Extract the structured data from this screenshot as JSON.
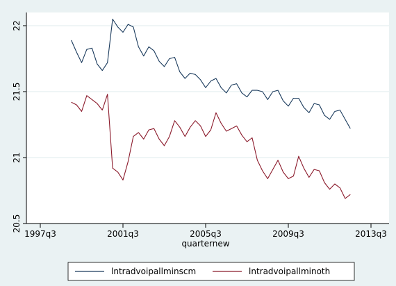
{
  "chart_data": {
    "type": "line",
    "title": "",
    "xlabel": "quarternew",
    "ylabel": "",
    "x_ticks": [
      "1997q3",
      "2001q3",
      "2005q3",
      "2009q3",
      "2013q3"
    ],
    "x_tick_positions": [
      1997.5,
      2001.5,
      2005.5,
      2009.5,
      2013.5
    ],
    "y_ticks": [
      "20.5",
      "21",
      "21.5",
      "22"
    ],
    "y_tick_values": [
      20.5,
      21,
      21.5,
      22
    ],
    "xlim": [
      1997.5,
      2013.5
    ],
    "ylim": [
      20.5,
      22.1
    ],
    "grid": true,
    "legend_position": "bottom",
    "colors": {
      "background": "#eaf2f3",
      "plot": "#ffffff",
      "grid": "#eaf2f3",
      "series1": "#1a3a5c",
      "series2": "#8b1a2b"
    },
    "series": [
      {
        "name": "lntradvoipallminscm",
        "color": "#1a3a5c",
        "x": [
          1999.0,
          1999.25,
          1999.5,
          1999.75,
          2000.0,
          2000.25,
          2000.5,
          2000.75,
          2001.0,
          2001.25,
          2001.5,
          2001.75,
          2002.0,
          2002.25,
          2002.5,
          2002.75,
          2003.0,
          2003.25,
          2003.5,
          2003.75,
          2004.0,
          2004.25,
          2004.5,
          2004.75,
          2005.0,
          2005.25,
          2005.5,
          2005.75,
          2006.0,
          2006.25,
          2006.5,
          2006.75,
          2007.0,
          2007.25,
          2007.5,
          2007.75,
          2008.0,
          2008.25,
          2008.5,
          2008.75,
          2009.0,
          2009.25,
          2009.5,
          2009.75,
          2010.0,
          2010.25,
          2010.5,
          2010.75,
          2011.0,
          2011.25,
          2011.5,
          2011.75,
          2012.0,
          2012.25,
          2012.5
        ],
        "values": [
          21.89,
          21.8,
          21.72,
          21.82,
          21.83,
          21.71,
          21.66,
          21.72,
          22.05,
          21.99,
          21.95,
          22.01,
          21.99,
          21.84,
          21.77,
          21.84,
          21.81,
          21.73,
          21.69,
          21.75,
          21.76,
          21.65,
          21.6,
          21.64,
          21.63,
          21.59,
          21.53,
          21.58,
          21.6,
          21.53,
          21.49,
          21.55,
          21.56,
          21.49,
          21.46,
          21.51,
          21.51,
          21.5,
          21.44,
          21.5,
          21.51,
          21.43,
          21.39,
          21.45,
          21.45,
          21.38,
          21.34,
          21.41,
          21.4,
          21.32,
          21.29,
          21.35,
          21.36,
          21.29,
          21.22
        ]
      },
      {
        "name": "lntradvoipallminoth",
        "color": "#8b1a2b",
        "x": [
          1999.0,
          1999.25,
          1999.5,
          1999.75,
          2000.0,
          2000.25,
          2000.5,
          2000.75,
          2001.0,
          2001.25,
          2001.5,
          2001.75,
          2002.0,
          2002.25,
          2002.5,
          2002.75,
          2003.0,
          2003.25,
          2003.5,
          2003.75,
          2004.0,
          2004.25,
          2004.5,
          2004.75,
          2005.0,
          2005.25,
          2005.5,
          2005.75,
          2006.0,
          2006.25,
          2006.5,
          2006.75,
          2007.0,
          2007.25,
          2007.5,
          2007.75,
          2008.0,
          2008.25,
          2008.5,
          2008.75,
          2009.0,
          2009.25,
          2009.5,
          2009.75,
          2010.0,
          2010.25,
          2010.5,
          2010.75,
          2011.0,
          2011.25,
          2011.5,
          2011.75,
          2012.0,
          2012.25,
          2012.5
        ],
        "values": [
          21.42,
          21.4,
          21.35,
          21.47,
          21.44,
          21.41,
          21.36,
          21.48,
          20.92,
          20.89,
          20.83,
          20.97,
          21.16,
          21.19,
          21.14,
          21.21,
          21.22,
          21.14,
          21.09,
          21.16,
          21.28,
          21.23,
          21.16,
          21.23,
          21.28,
          21.24,
          21.16,
          21.21,
          21.34,
          21.26,
          21.2,
          21.22,
          21.24,
          21.17,
          21.12,
          21.15,
          20.98,
          20.9,
          20.84,
          20.91,
          20.98,
          20.89,
          20.84,
          20.86,
          21.01,
          20.92,
          20.85,
          20.91,
          20.9,
          20.81,
          20.76,
          20.8,
          20.77,
          20.69,
          20.72
        ]
      }
    ]
  }
}
